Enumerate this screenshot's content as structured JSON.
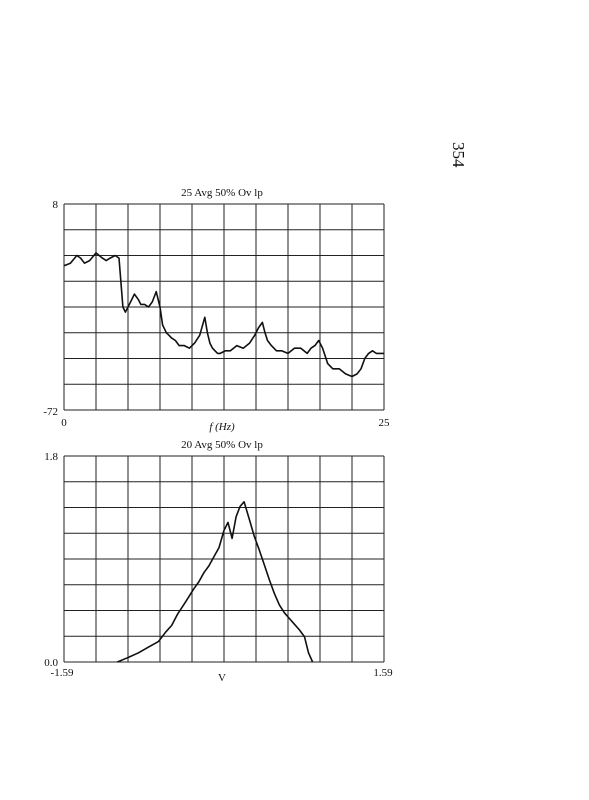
{
  "page_number": "354",
  "chart_data": [
    {
      "type": "line",
      "title": "25 Avg 50% Ov lp",
      "xlabel": "f (Hz)",
      "ylabel": "",
      "xlim": [
        0,
        25
      ],
      "ylim": [
        -72,
        8
      ],
      "x_tick_labels": [
        "0",
        "25"
      ],
      "y_tick_labels": [
        "8",
        "-72"
      ],
      "grid": true,
      "grid_divisions": {
        "x": 10,
        "y": 8
      },
      "line_color": "#111111",
      "series": [
        {
          "x": [
            0,
            0.5,
            1.0,
            1.3,
            1.6,
            2.0,
            2.5,
            3.0,
            3.3,
            3.6,
            4.0,
            4.3,
            4.6,
            4.8,
            5.0,
            5.2,
            5.5,
            5.8,
            6.0,
            6.3,
            6.6,
            6.9,
            7.2,
            7.5,
            7.7,
            8.0,
            8.2,
            8.4,
            8.7,
            9.0,
            9.4,
            9.8,
            10.2,
            10.6,
            11.0,
            11.2,
            11.4,
            11.6,
            11.8,
            12.0,
            12.2,
            12.6,
            13.0,
            13.5,
            14.0,
            14.5,
            14.9,
            15.2,
            15.5,
            15.7,
            15.9,
            16.2,
            16.6,
            17.0,
            17.5,
            18.0,
            18.5,
            19.0,
            19.3,
            19.6,
            19.9,
            20.2,
            20.6,
            21.0,
            21.5,
            22.0,
            22.5,
            22.9,
            23.2,
            23.5,
            23.8,
            24.1,
            24.4,
            24.7,
            25.0
          ],
          "y": [
            -16,
            -15,
            -12,
            -13,
            -15,
            -14,
            -11,
            -13,
            -14,
            -13,
            -12,
            -13,
            -32,
            -34,
            -32,
            -30,
            -27,
            -29,
            -31,
            -31,
            -32,
            -30,
            -26,
            -32,
            -39,
            -42,
            -43,
            -44,
            -45,
            -47,
            -47,
            -48,
            -46,
            -43,
            -36,
            -42,
            -46,
            -48,
            -49,
            -50,
            -50,
            -49,
            -49,
            -47,
            -48,
            -46,
            -43,
            -40,
            -38,
            -42,
            -45,
            -47,
            -49,
            -49,
            -50,
            -48,
            -48,
            -50,
            -48,
            -47,
            -45,
            -48,
            -54,
            -56,
            -56,
            -58,
            -59,
            -58,
            -56,
            -52,
            -50,
            -49,
            -50,
            -50,
            -50
          ]
        }
      ]
    },
    {
      "type": "line",
      "title": "20 Avg 50% Ov lp",
      "xlabel": "V",
      "ylabel": "",
      "xlim": [
        -1.59,
        1.59
      ],
      "ylim": [
        0.0,
        1.8
      ],
      "x_tick_labels": [
        "-1.59",
        "1.59"
      ],
      "y_tick_labels": [
        "1.8",
        "0.0"
      ],
      "grid": true,
      "grid_divisions": {
        "x": 10,
        "y": 8
      },
      "line_color": "#111111",
      "series": [
        {
          "x": [
            -1.06,
            -0.95,
            -0.85,
            -0.75,
            -0.65,
            -0.58,
            -0.52,
            -0.46,
            -0.4,
            -0.35,
            -0.3,
            -0.25,
            -0.2,
            -0.15,
            -0.1,
            -0.05,
            0.0,
            0.04,
            0.08,
            0.12,
            0.16,
            0.2,
            0.25,
            0.3,
            0.35,
            0.4,
            0.45,
            0.5,
            0.55,
            0.6,
            0.65,
            0.7,
            0.75,
            0.8,
            0.84,
            0.88
          ],
          "y": [
            0.0,
            0.04,
            0.08,
            0.13,
            0.18,
            0.26,
            0.32,
            0.42,
            0.5,
            0.57,
            0.64,
            0.7,
            0.78,
            0.84,
            0.92,
            1.0,
            1.15,
            1.22,
            1.08,
            1.27,
            1.36,
            1.4,
            1.25,
            1.1,
            0.98,
            0.85,
            0.72,
            0.6,
            0.5,
            0.43,
            0.38,
            0.33,
            0.28,
            0.22,
            0.08,
            0.0
          ]
        }
      ]
    }
  ]
}
